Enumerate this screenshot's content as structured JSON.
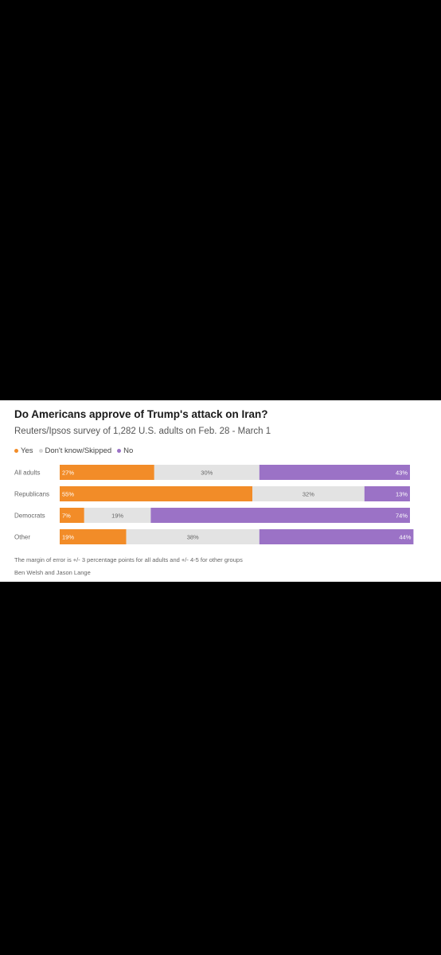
{
  "card": {
    "title": "Do Americans approve of Trump's attack on Iran?",
    "subtitle": "Reuters/Ipsos survey of 1,282 U.S. adults on Feb. 28 - March 1",
    "note": "The margin of error is +/- 3 percentage points for all adults and +/- 4-5 for other groups",
    "credit": "Ben Welsh and Jason Lange"
  },
  "chart_data": {
    "type": "bar",
    "orientation": "horizontal",
    "stacked": true,
    "title": "Do Americans approve of Trump's attack on Iran?",
    "subtitle": "Reuters/Ipsos survey of 1,282 U.S. adults on Feb. 28 - March 1",
    "categories": [
      "All adults",
      "Republicans",
      "Democrats",
      "Other"
    ],
    "series": [
      {
        "name": "Yes",
        "color": "#f28c28",
        "values": [
          27,
          55,
          7,
          19
        ],
        "labels": [
          "27%",
          "55%",
          "7%",
          "19%"
        ]
      },
      {
        "name": "Don't know/Skipped",
        "color": "#e3e3e3",
        "values": [
          30,
          32,
          19,
          38
        ],
        "labels": [
          "30%",
          "32%",
          "19%",
          "38%"
        ]
      },
      {
        "name": "No",
        "color": "#9b72c6",
        "values": [
          43,
          13,
          74,
          44
        ],
        "labels": [
          "43%",
          "13%",
          "74%",
          "44%"
        ]
      }
    ],
    "xlim": [
      0,
      100
    ],
    "legend_position": "top-left",
    "grid": false
  }
}
